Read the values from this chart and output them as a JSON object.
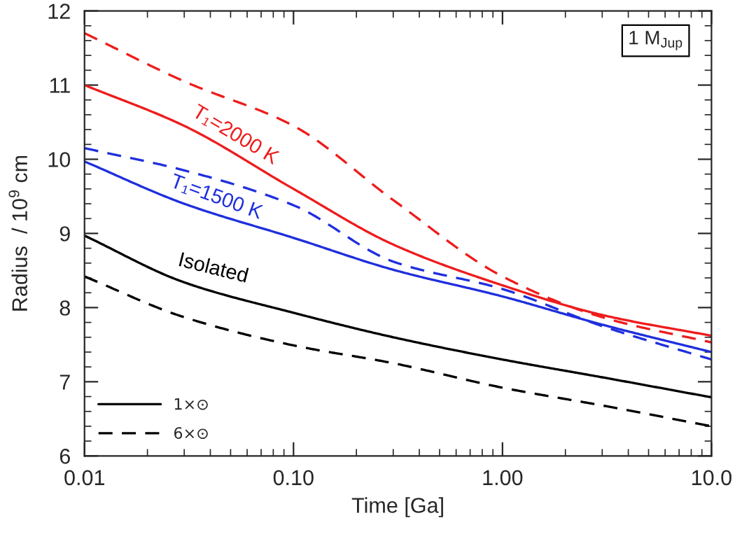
{
  "chart_data": {
    "type": "line",
    "xlabel": "Time [Ga]",
    "ylabel": "Radius  / 10$^{9}$ cm",
    "log": "x",
    "xlim": [
      0.01,
      10
    ],
    "xticks": [
      {
        "value": 0.01,
        "label": "0.01"
      },
      {
        "value": 0.1,
        "label": "0.10"
      },
      {
        "value": 1,
        "label": "1.00"
      },
      {
        "value": 10,
        "label": "10.0"
      }
    ],
    "ylim": [
      6,
      12
    ],
    "yticks": [
      6,
      7,
      8,
      9,
      10,
      11,
      12
    ],
    "x": [
      0.01,
      0.03,
      0.1,
      0.3,
      1,
      3,
      10
    ],
    "series": [
      {
        "color": "#ee1c1c",
        "line_style": "solid",
        "values": [
          11.0,
          10.45,
          9.6,
          8.85,
          8.3,
          7.9,
          7.62
        ]
      },
      {
        "color": "#ee1c1c",
        "line_style": "dashed",
        "values": [
          11.7,
          11.05,
          10.45,
          9.45,
          8.42,
          7.87,
          7.53
        ]
      },
      {
        "color": "#1f2fdd",
        "line_style": "solid",
        "values": [
          9.97,
          9.4,
          8.94,
          8.51,
          8.15,
          7.77,
          7.4
        ]
      },
      {
        "color": "#1f2fdd",
        "line_style": "dashed",
        "values": [
          10.15,
          9.85,
          9.38,
          8.62,
          8.25,
          7.75,
          7.3
        ]
      },
      {
        "name": "1×⊙",
        "color": "#000000",
        "line_style": "solid",
        "values": [
          8.97,
          8.34,
          7.93,
          7.6,
          7.3,
          7.06,
          6.79
        ]
      },
      {
        "name": "6×⊙",
        "color": "#000000",
        "line_style": "dashed",
        "values": [
          8.42,
          7.87,
          7.49,
          7.25,
          6.92,
          6.68,
          6.4
        ]
      }
    ],
    "annotations": [
      "T₁=2000 K",
      "T₁=1500 K",
      "Isolated",
      "1 M$_{Jup}$"
    ],
    "legend": "bottom left",
    "grid": false
  }
}
